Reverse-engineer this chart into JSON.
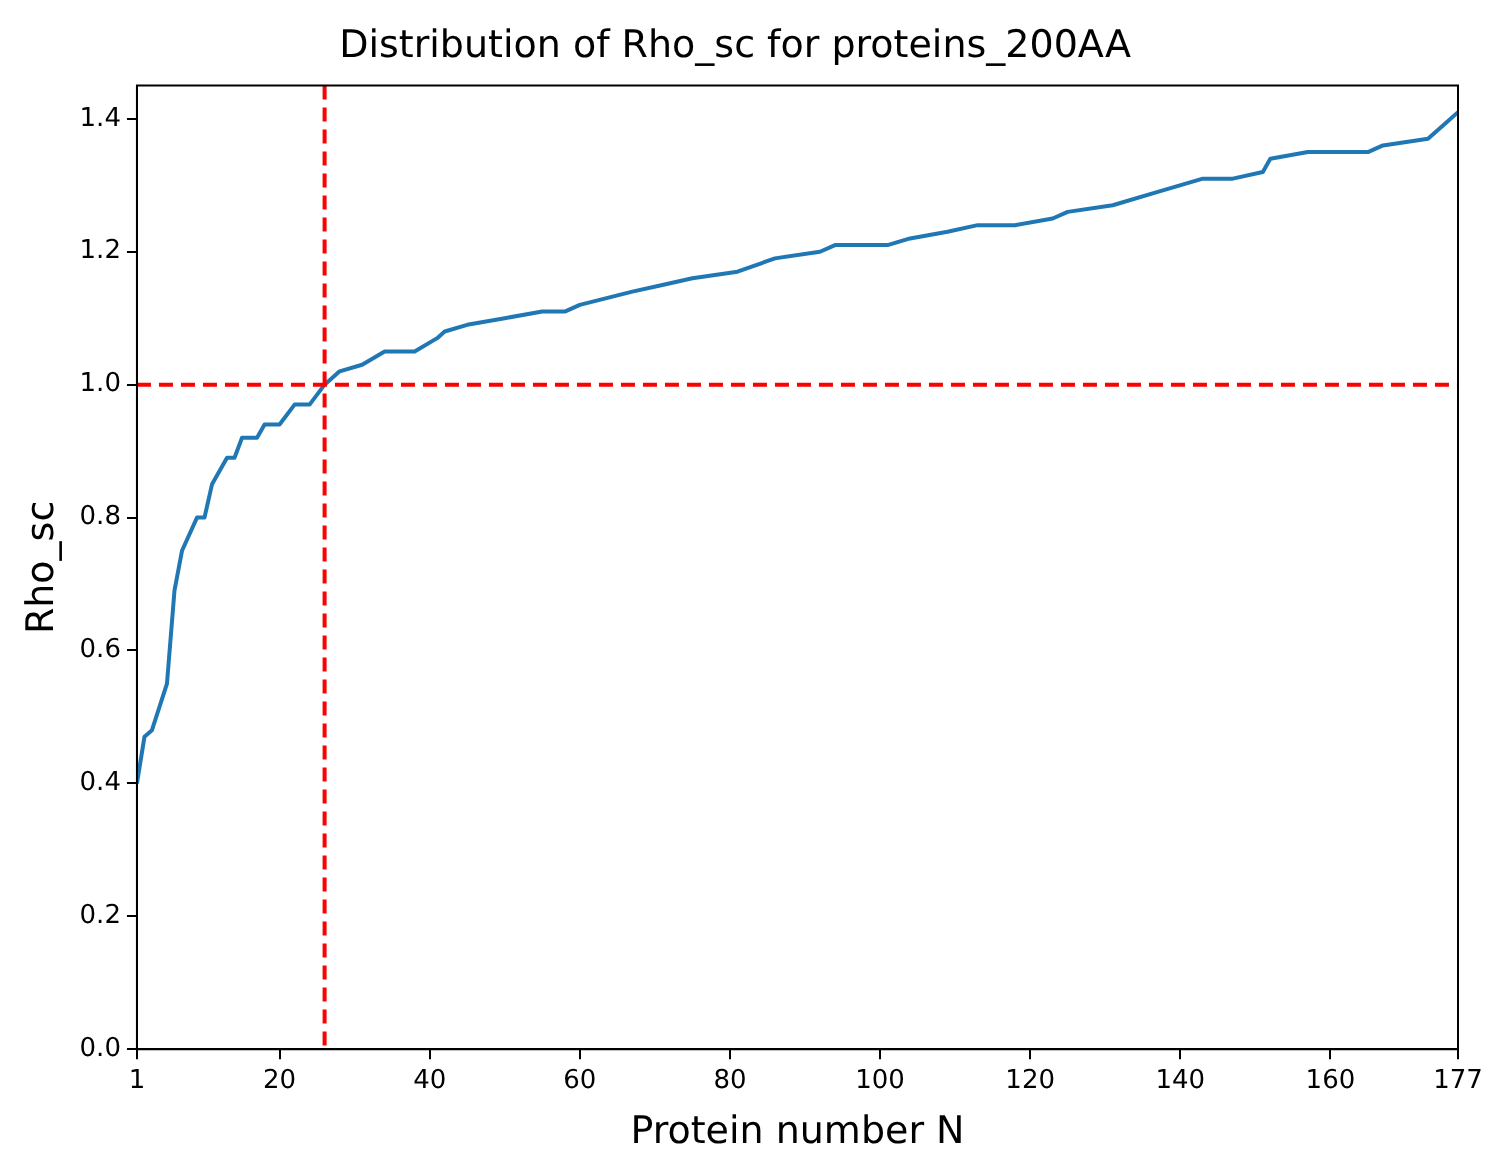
{
  "chart_data": {
    "type": "line",
    "title": "Distribution of Rho_sc for proteins_200AA",
    "xlabel": "Protein number N",
    "ylabel": "Rho_sc",
    "x": [
      1,
      2,
      3,
      5,
      6,
      7,
      9,
      10,
      11,
      13,
      14,
      15,
      17,
      18,
      20,
      22,
      24,
      26,
      28,
      31,
      34,
      36,
      38,
      41,
      42,
      45,
      50,
      55,
      58,
      60,
      67,
      71,
      75,
      81,
      86,
      92,
      94,
      101,
      104,
      109,
      113,
      118,
      123,
      125,
      131,
      137,
      143,
      147,
      151,
      152,
      157,
      165,
      167,
      173,
      175,
      177
    ],
    "series": [
      {
        "color": "#1f77b4",
        "values": [
          0.4,
          0.47,
          0.48,
          0.55,
          0.69,
          0.75,
          0.8,
          0.8,
          0.85,
          0.89,
          0.89,
          0.92,
          0.92,
          0.94,
          0.94,
          0.97,
          0.97,
          1.0,
          1.02,
          1.03,
          1.05,
          1.05,
          1.05,
          1.07,
          1.08,
          1.09,
          1.1,
          1.11,
          1.11,
          1.12,
          1.14,
          1.15,
          1.16,
          1.17,
          1.19,
          1.2,
          1.21,
          1.21,
          1.22,
          1.23,
          1.24,
          1.24,
          1.25,
          1.26,
          1.27,
          1.29,
          1.31,
          1.31,
          1.32,
          1.34,
          1.35,
          1.35,
          1.36,
          1.37,
          1.39,
          1.41
        ]
      }
    ],
    "xlim": [
      1,
      177
    ],
    "xticks": [
      1,
      20,
      40,
      60,
      80,
      100,
      120,
      140,
      160,
      177
    ],
    "ylim": [
      0,
      1.45
    ],
    "yticks": [
      {
        "value": 0,
        "label": "0.0"
      },
      {
        "value": 0.2,
        "label": "0.2"
      },
      {
        "value": 0.4,
        "label": "0.4"
      },
      {
        "value": 0.6,
        "label": "0.6"
      },
      {
        "value": 0.8,
        "label": "0.8"
      },
      {
        "value": 1,
        "label": "1.0"
      },
      {
        "value": 1.2,
        "label": "1.2"
      },
      {
        "value": 1.4,
        "label": "1.4"
      }
    ],
    "ref_lines": [
      {
        "axis": "x",
        "value": 26,
        "color": "#ff0000",
        "line_style": "dashed"
      },
      {
        "axis": "y",
        "value": 1,
        "color": "#ff0000",
        "line_style": "dashed"
      }
    ],
    "grid": false,
    "legend": false,
    "marker": "none",
    "line_style": "solid"
  }
}
